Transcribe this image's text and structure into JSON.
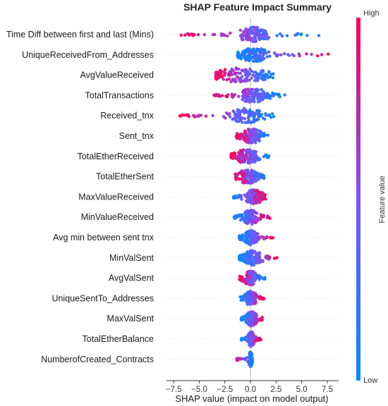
{
  "chart_data": {
    "type": "beeswarm",
    "title": "SHAP Feature Impact Summary",
    "xlabel": "SHAP value (impact on model output)",
    "xlim": [
      -8.2,
      8.6
    ],
    "xticks": [
      -7.5,
      -5.0,
      -2.5,
      0.0,
      2.5,
      5.0,
      7.5
    ],
    "xtick_labels": [
      "−7.5",
      "−5.0",
      "−2.5",
      "0.0",
      "2.5",
      "5.0",
      "7.5"
    ],
    "colorbar": {
      "label": "Feature value",
      "high": "High",
      "low": "Low",
      "high_color": "#ff0052",
      "low_color": "#008bfb"
    },
    "features": [
      {
        "name": "Time Diff between first and last (Mins)",
        "min": -6.8,
        "max": 6.7,
        "core": [
          -1.0,
          1.5
        ],
        "low_side": "right"
      },
      {
        "name": "UniqueReceivedFrom_Addresses",
        "min": -1.3,
        "max": 7.8,
        "core": [
          -0.6,
          1.4
        ],
        "low_side": "left"
      },
      {
        "name": "AvgValueReceived",
        "min": -3.4,
        "max": 2.3,
        "core": [
          -2.8,
          1.0
        ],
        "low_side": "right"
      },
      {
        "name": "TotalTransactions",
        "min": -3.6,
        "max": 3.5,
        "core": [
          -0.8,
          1.3
        ],
        "low_side": "right"
      },
      {
        "name": "Received_tnx",
        "min": -6.9,
        "max": 2.4,
        "core": [
          -1.6,
          0.8
        ],
        "low_side": "right"
      },
      {
        "name": "Sent_tnx",
        "min": -1.4,
        "max": 1.8,
        "core": [
          -0.7,
          0.9
        ],
        "low_side": "right"
      },
      {
        "name": "TotalEtherReceived",
        "min": -1.9,
        "max": 1.8,
        "core": [
          -1.2,
          0.6
        ],
        "low_side": "right"
      },
      {
        "name": "TotalEtherSent",
        "min": -1.5,
        "max": 1.4,
        "core": [
          -1.0,
          0.5
        ],
        "low_side": "right"
      },
      {
        "name": "MaxValueReceived",
        "min": -1.7,
        "max": 1.5,
        "core": [
          -0.3,
          1.0
        ],
        "low_side": "left"
      },
      {
        "name": "MinValueReceived",
        "min": -1.6,
        "max": 1.9,
        "core": [
          -0.6,
          0.6
        ],
        "low_side": "left"
      },
      {
        "name": "Avg min between sent tnx",
        "min": -1.1,
        "max": 2.3,
        "core": [
          -0.5,
          0.6
        ],
        "low_side": "left"
      },
      {
        "name": "MinValSent",
        "min": -1.1,
        "max": 2.9,
        "core": [
          -0.5,
          0.9
        ],
        "low_side": "left"
      },
      {
        "name": "AvgValSent",
        "min": -1.1,
        "max": 1.4,
        "core": [
          -0.5,
          0.5
        ],
        "low_side": "right"
      },
      {
        "name": "UniqueSentTo_Addresses",
        "min": -1.0,
        "max": 1.4,
        "core": [
          -0.4,
          0.5
        ],
        "low_side": "left"
      },
      {
        "name": "MaxValSent",
        "min": -0.9,
        "max": 1.2,
        "core": [
          -0.3,
          0.5
        ],
        "low_side": "left"
      },
      {
        "name": "TotalEtherBalance",
        "min": -0.9,
        "max": 1.1,
        "core": [
          -0.2,
          0.3
        ],
        "low_side": "left"
      },
      {
        "name": "NumberofCreated_Contracts",
        "min": -1.4,
        "max": 0.2,
        "core": [
          -0.1,
          0.1
        ],
        "low_side": "right"
      }
    ]
  }
}
